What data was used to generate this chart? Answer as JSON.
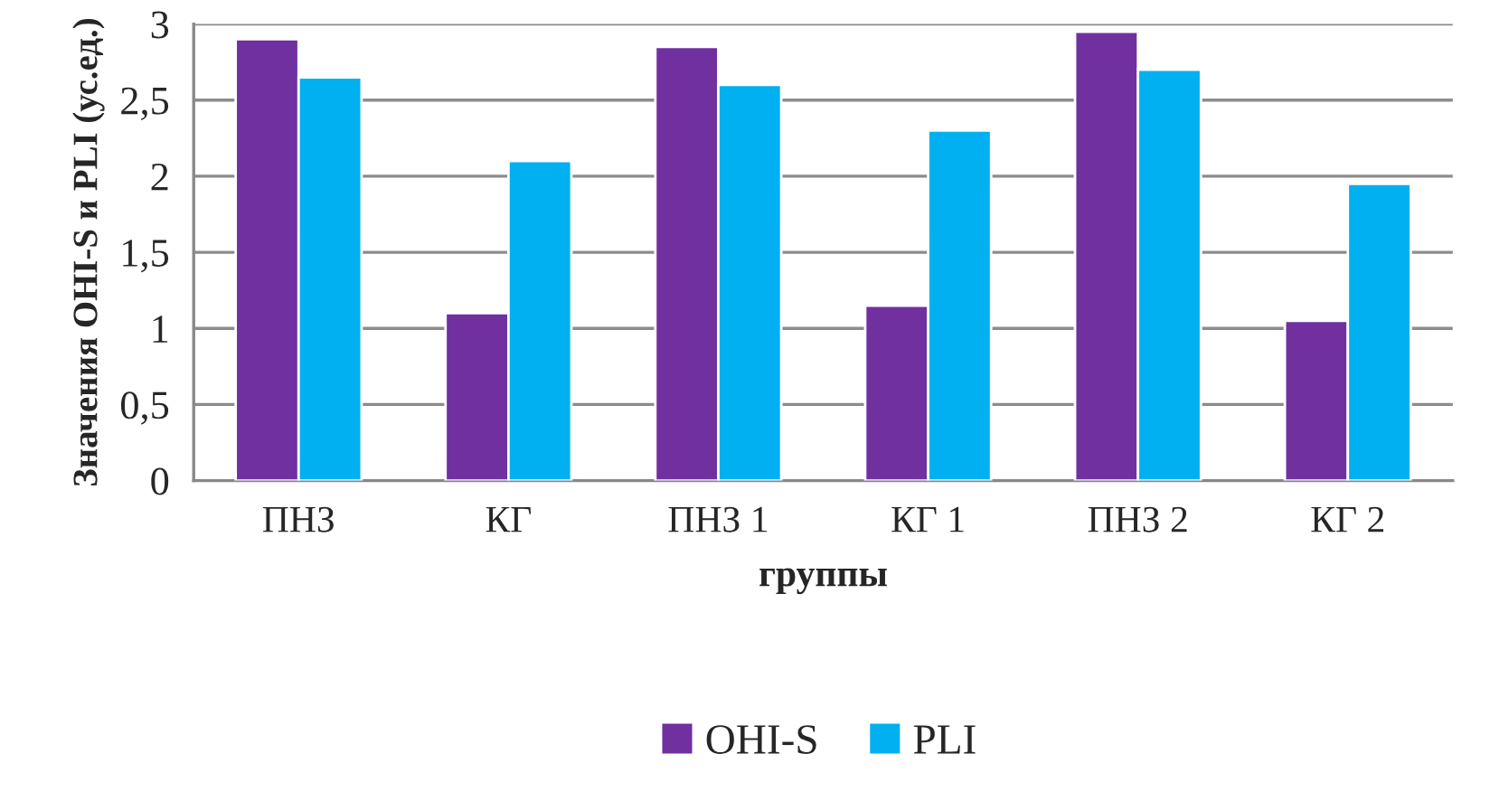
{
  "chart_data": {
    "type": "bar",
    "xlabel": "группы",
    "ylabel": "Значения OHI-S и PLI (ус.ед.)",
    "categories": [
      "ПНЗ",
      "КГ",
      "ПНЗ 1",
      "КГ 1",
      "ПНЗ 2",
      "КГ 2"
    ],
    "series": [
      {
        "name": "OHI-S",
        "color": "#7030a0",
        "values": [
          2.9,
          1.1,
          2.85,
          1.15,
          2.95,
          1.05
        ]
      },
      {
        "name": "PLI",
        "color": "#00b0f0",
        "values": [
          2.65,
          2.1,
          2.6,
          2.3,
          2.7,
          1.95
        ]
      }
    ],
    "ylim": [
      0,
      3
    ],
    "yticks": [
      0,
      {
        "value": 0.5,
        "label": "0,5"
      },
      1,
      {
        "value": 1.5,
        "label": "1,5"
      },
      2,
      {
        "value": 2.5,
        "label": "2,5"
      },
      3
    ],
    "grid": "y",
    "legend": "bottom"
  }
}
